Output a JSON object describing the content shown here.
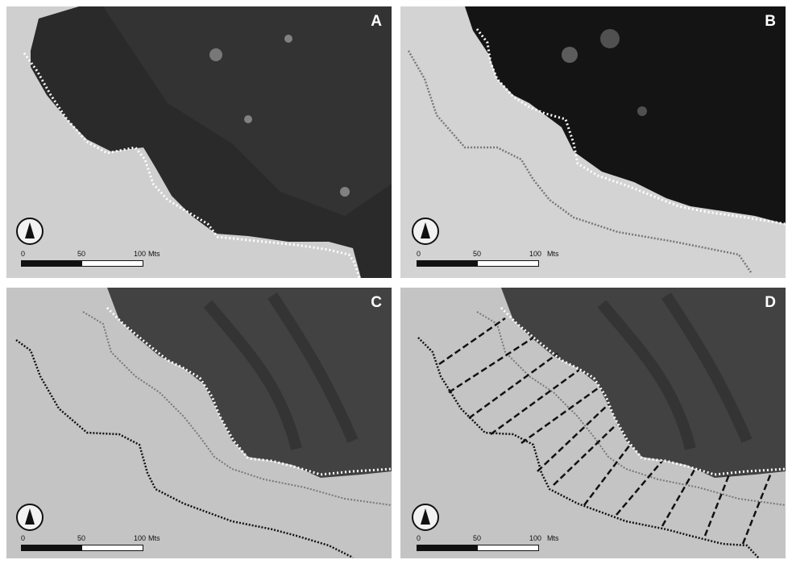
{
  "panels": [
    {
      "label": "A",
      "scale": {
        "t0": "0",
        "t1": "50",
        "t2": "100",
        "unit": "Mts"
      }
    },
    {
      "label": "B",
      "scale": {
        "t0": "0",
        "t1": "50",
        "t2": "100",
        "unit": "Mts"
      }
    },
    {
      "label": "C",
      "scale": {
        "t0": "0",
        "t1": "50",
        "t2": "100",
        "unit": "Mts"
      }
    },
    {
      "label": "D",
      "scale": {
        "t0": "0",
        "t1": "50",
        "t2": "100",
        "unit": "Mts"
      }
    }
  ],
  "icons": {
    "north_arrow": "north-arrow-icon"
  },
  "colors": {
    "forest_dark": "#1e1e1e",
    "ground_light": "#d6d6d6",
    "boundary": "#ffffff",
    "trace_black": "#111111"
  }
}
